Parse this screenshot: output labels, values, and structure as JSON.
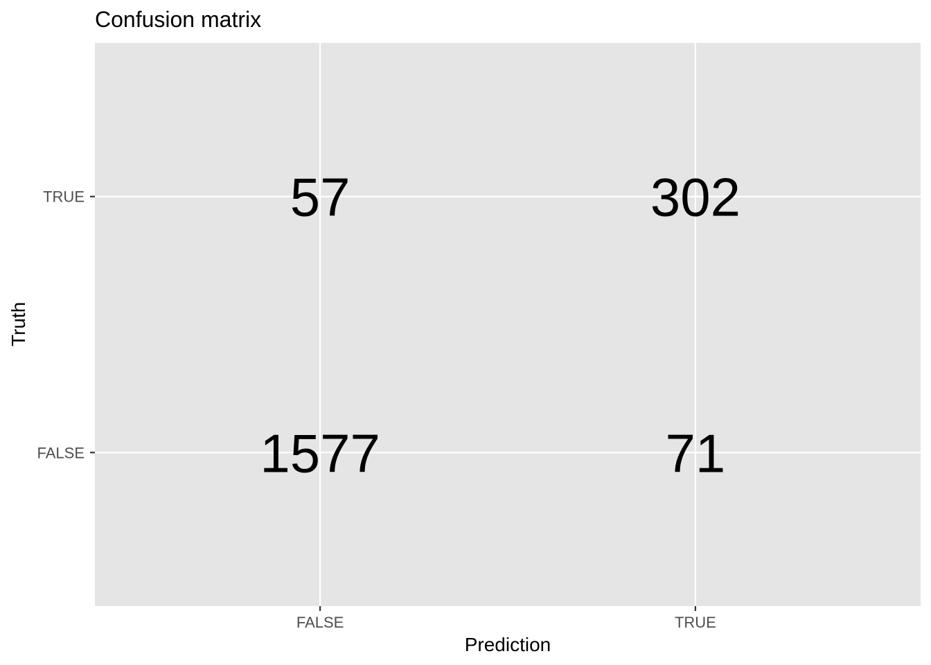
{
  "chart_data": {
    "type": "table",
    "title": "Confusion matrix",
    "xlabel": "Prediction",
    "ylabel": "Truth",
    "x_categories": [
      "FALSE",
      "TRUE"
    ],
    "y_categories": [
      "FALSE",
      "TRUE"
    ],
    "cells": [
      {
        "prediction": "FALSE",
        "truth": "TRUE",
        "value": 57
      },
      {
        "prediction": "TRUE",
        "truth": "TRUE",
        "value": 302
      },
      {
        "prediction": "FALSE",
        "truth": "FALSE",
        "value": 1577
      },
      {
        "prediction": "TRUE",
        "truth": "FALSE",
        "value": 71
      }
    ],
    "grid": true,
    "legend": "none"
  },
  "colors": {
    "panel_background": "#e5e5e5",
    "grid": "#ffffff",
    "text": "#000000",
    "tick_text": "#4d4d4d"
  }
}
